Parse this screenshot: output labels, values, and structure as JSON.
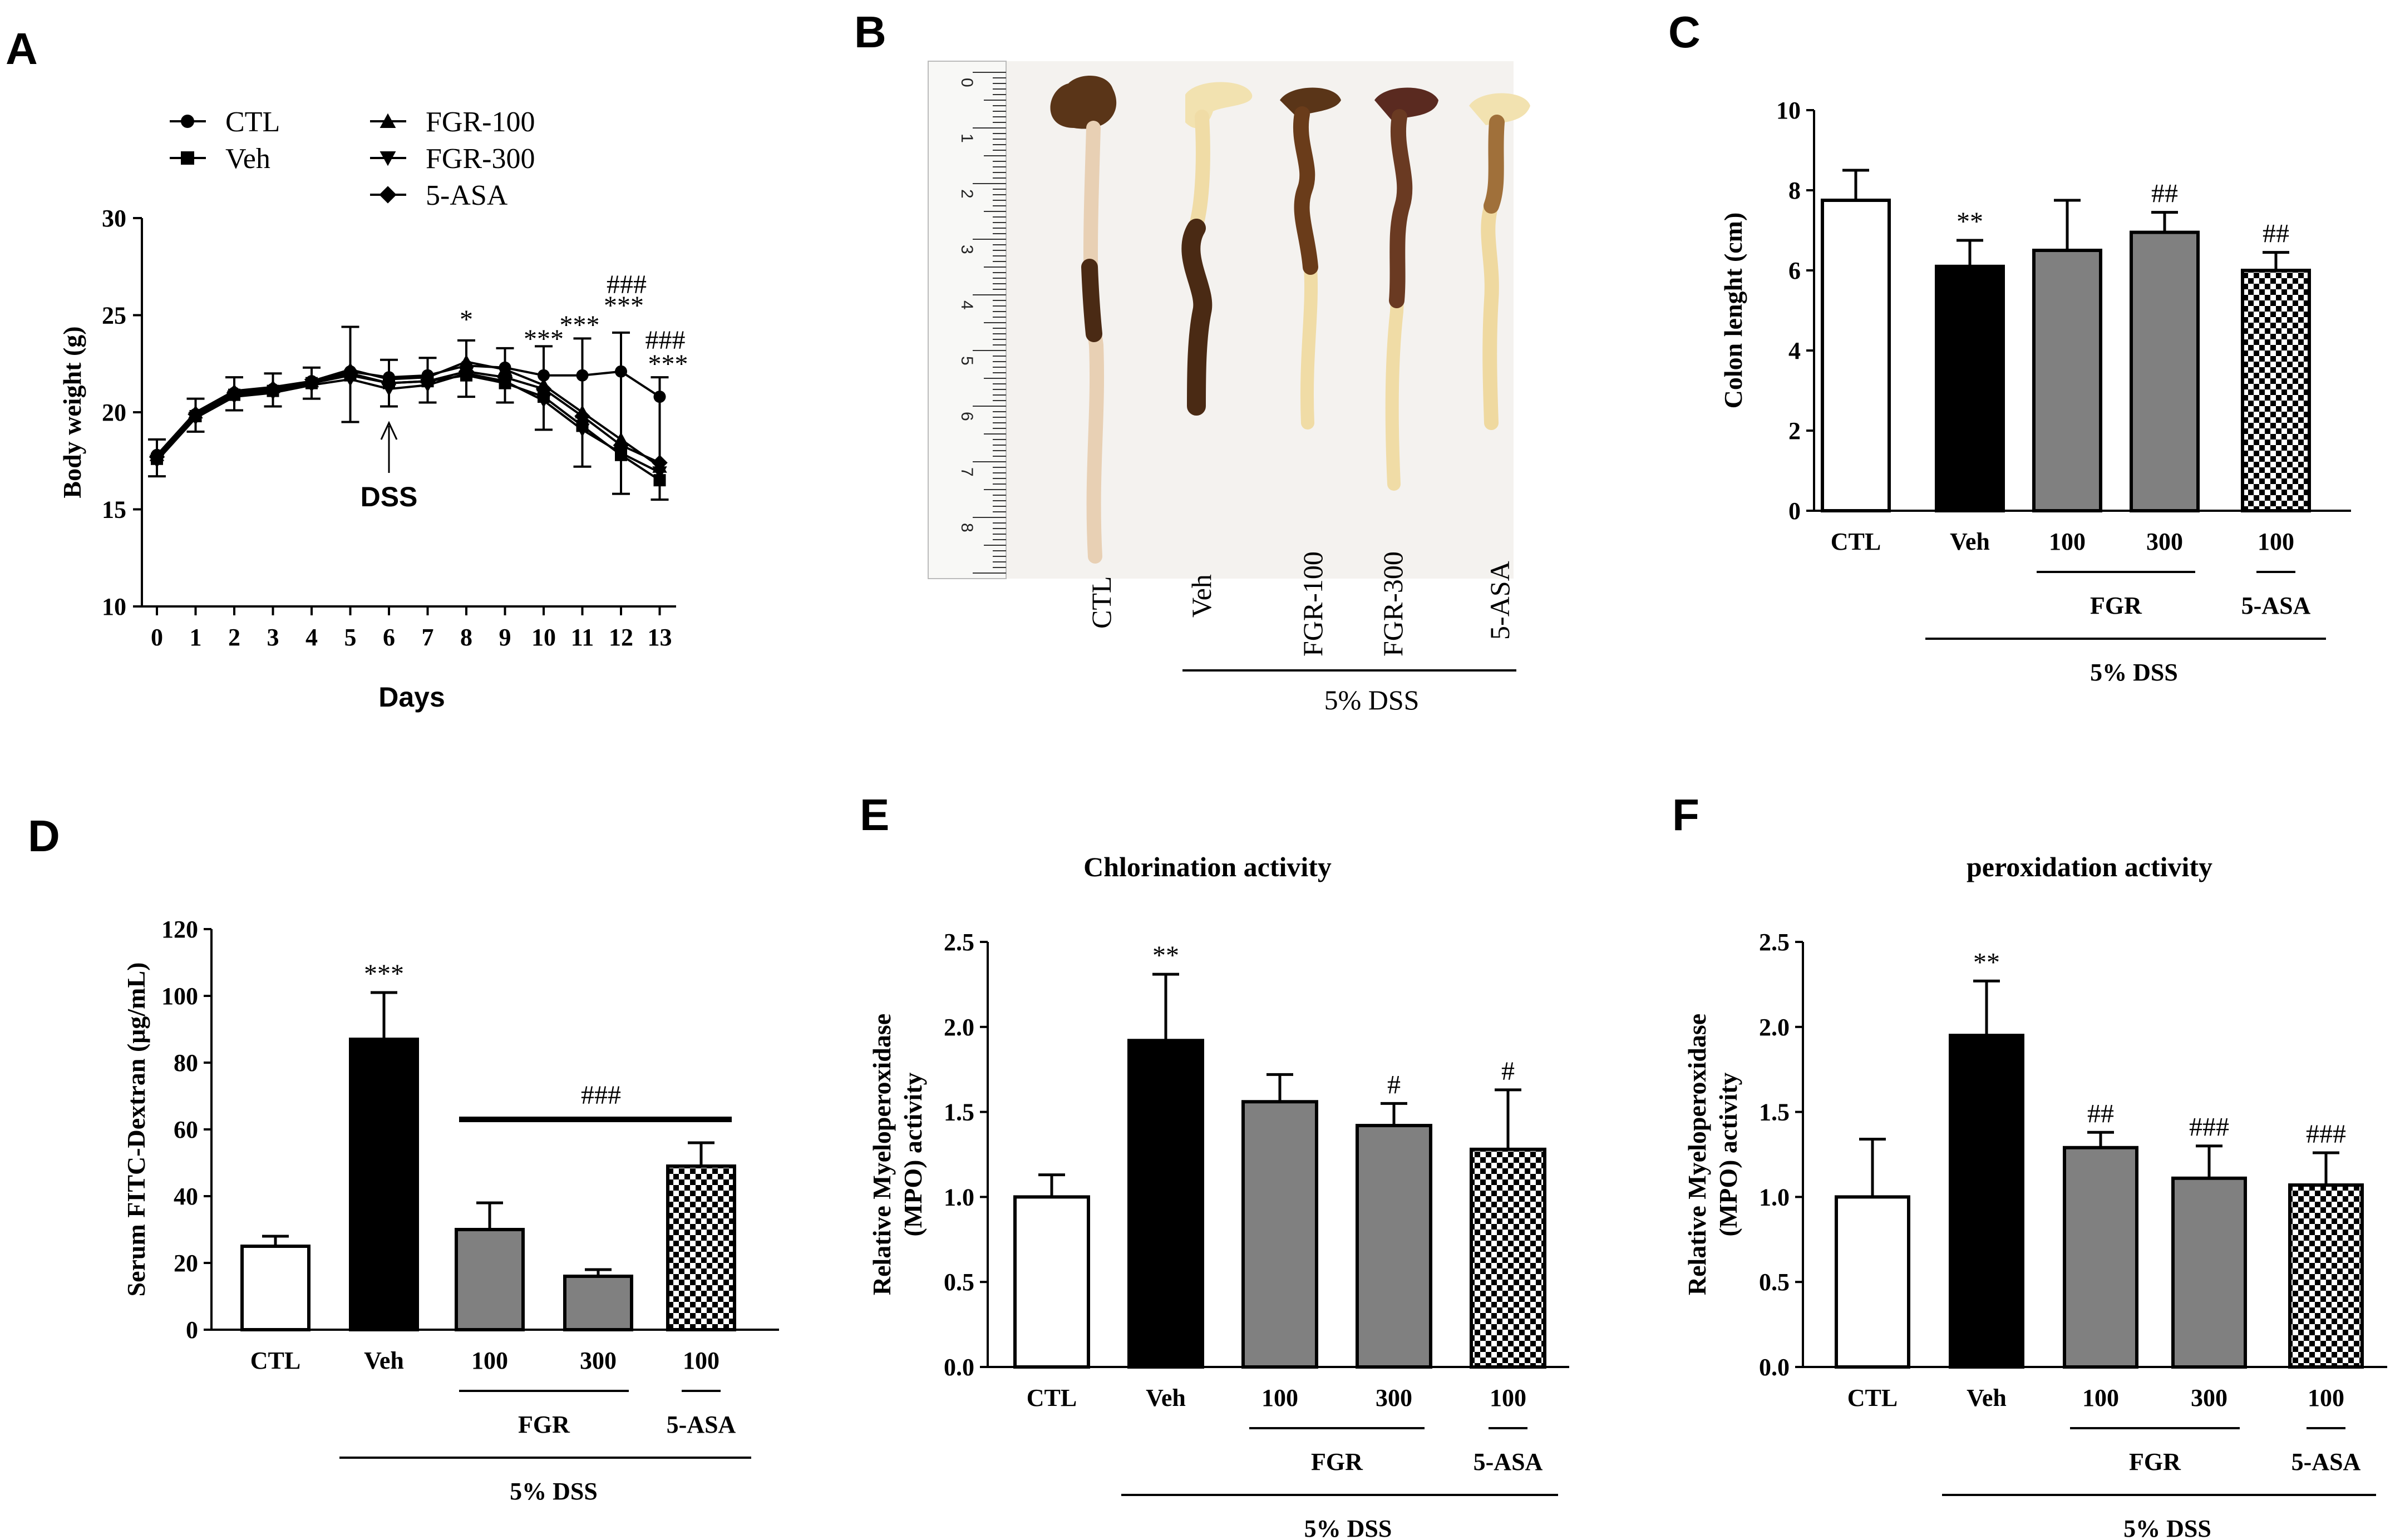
{
  "figure": {
    "panel_letters": [
      "A",
      "B",
      "C",
      "D",
      "E",
      "F"
    ]
  },
  "chart_data": [
    {
      "panel": "A",
      "type": "line",
      "xlabel": "Days",
      "ylabel": "Body weight (g)",
      "ylim": [
        10,
        30
      ],
      "yticks": [
        "10",
        "15",
        "20",
        "25",
        "30"
      ],
      "x": [
        0,
        1,
        2,
        3,
        4,
        5,
        6,
        7,
        8,
        9,
        10,
        11,
        12,
        13
      ],
      "annotation": "DSS",
      "annotation_day": 6,
      "series": [
        {
          "name": "CTL",
          "marker": "circle",
          "values": [
            17.8,
            19.9,
            21.0,
            21.2,
            21.6,
            22.1,
            21.8,
            21.9,
            22.4,
            22.3,
            21.9,
            21.9,
            22.1,
            20.8
          ]
        },
        {
          "name": "Veh",
          "marker": "square",
          "values": [
            17.6,
            19.8,
            20.9,
            21.1,
            21.5,
            21.9,
            21.5,
            21.6,
            21.9,
            21.5,
            20.8,
            19.3,
            17.8,
            16.5
          ]
        },
        {
          "name": "FGR-100",
          "marker": "triangle-up",
          "values": [
            17.8,
            20.0,
            21.1,
            21.3,
            21.6,
            22.2,
            21.7,
            21.8,
            22.6,
            22.2,
            21.4,
            20.0,
            18.6,
            17.2
          ]
        },
        {
          "name": "FGR-300",
          "marker": "triangle-down",
          "values": [
            17.5,
            19.7,
            20.8,
            21.0,
            21.4,
            21.7,
            21.2,
            21.4,
            22.0,
            21.6,
            20.6,
            19.1,
            17.9,
            16.9
          ]
        },
        {
          "name": "5-ASA",
          "marker": "diamond",
          "values": [
            17.7,
            19.9,
            21.0,
            21.2,
            21.5,
            22.0,
            21.5,
            21.6,
            22.1,
            21.8,
            21.2,
            19.8,
            18.3,
            17.4
          ]
        }
      ],
      "errors": [
        0.8,
        0.7,
        0.7,
        0.7,
        0.7,
        2.2,
        0.9,
        0.9,
        1.1,
        1.0,
        1.5,
        1.9,
        2.0,
        1.0
      ],
      "significance": [
        {
          "day": 8,
          "text": "*"
        },
        {
          "day": 10,
          "text": "***"
        },
        {
          "day": 11,
          "text": "***"
        },
        {
          "day": 12,
          "text": "***"
        },
        {
          "day": 12,
          "text": "###"
        },
        {
          "day": 13,
          "text": "###"
        },
        {
          "day": 13,
          "text": "***"
        }
      ]
    },
    {
      "panel": "C",
      "type": "bar",
      "ylabel": "Colon lenght (cm)",
      "ylim": [
        0,
        10
      ],
      "yticks": [
        "0",
        "2",
        "4",
        "6",
        "8",
        "10"
      ],
      "categories": [
        "CTL",
        "Veh",
        "100",
        "300",
        "100"
      ],
      "values": [
        7.75,
        6.1,
        6.5,
        6.95,
        6.0
      ],
      "errors": [
        0.75,
        0.65,
        1.25,
        0.5,
        0.45
      ],
      "fills": [
        "white",
        "black",
        "gray",
        "gray",
        "checker"
      ],
      "significance": [
        "",
        "**",
        "",
        "##",
        "##"
      ],
      "group_labels": {
        "fgr": "FGR",
        "asa": "5-ASA",
        "dss": "5% DSS"
      }
    },
    {
      "panel": "D",
      "type": "bar",
      "ylabel": "Serum FITC-Dextran (μg/mL)",
      "ylim": [
        0,
        120
      ],
      "yticks": [
        "0",
        "20",
        "40",
        "60",
        "80",
        "100",
        "120"
      ],
      "categories": [
        "CTL",
        "Veh",
        "100",
        "300",
        "100"
      ],
      "values": [
        25,
        87,
        30,
        16,
        49
      ],
      "errors": [
        3,
        14,
        8,
        2,
        7
      ],
      "fills": [
        "white",
        "black",
        "gray",
        "gray",
        "checker"
      ],
      "significance": [
        "",
        "***",
        "",
        "",
        ""
      ],
      "bracket_label": "###",
      "group_labels": {
        "fgr": "FGR",
        "asa": "5-ASA",
        "dss": "5% DSS"
      }
    },
    {
      "panel": "E",
      "type": "bar",
      "title": "Chlorination activity",
      "ylabel": "Relative Myeloperoxidase (MPO) activity",
      "ylabel_lines": [
        "Relative Myeloperoxidase",
        "(MPO) activity"
      ],
      "ylim": [
        0,
        2.5
      ],
      "yticks": [
        "0.0",
        "0.5",
        "1.0",
        "1.5",
        "2.0",
        "2.5"
      ],
      "categories": [
        "CTL",
        "Veh",
        "100",
        "300",
        "100"
      ],
      "values": [
        1.0,
        1.92,
        1.56,
        1.42,
        1.28
      ],
      "errors": [
        0.13,
        0.39,
        0.16,
        0.13,
        0.35
      ],
      "fills": [
        "white",
        "black",
        "gray",
        "gray",
        "checker"
      ],
      "significance": [
        "",
        "**",
        "",
        "#",
        "#"
      ],
      "group_labels": {
        "fgr": "FGR",
        "asa": "5-ASA",
        "dss": "5% DSS"
      }
    },
    {
      "panel": "F",
      "type": "bar",
      "title": "peroxidation activity",
      "ylabel": "Relative Myeloperoxidase (MPO) activity",
      "ylabel_lines": [
        "Relative Myeloperoxidase",
        "(MPO) activity"
      ],
      "ylim": [
        0,
        2.5
      ],
      "yticks": [
        "0.0",
        "0.5",
        "1.0",
        "1.5",
        "2.0",
        "2.5"
      ],
      "categories": [
        "CTL",
        "Veh",
        "100",
        "300",
        "100"
      ],
      "values": [
        1.0,
        1.95,
        1.29,
        1.11,
        1.07
      ],
      "errors": [
        0.34,
        0.32,
        0.09,
        0.19,
        0.19
      ],
      "fills": [
        "white",
        "black",
        "gray",
        "gray",
        "checker"
      ],
      "significance": [
        "",
        "**",
        "##",
        "###",
        "###"
      ],
      "group_labels": {
        "fgr": "FGR",
        "asa": "5-ASA",
        "dss": "5% DSS"
      }
    }
  ],
  "photo": {
    "panel": "B",
    "labels": [
      "CTL",
      "Veh",
      "FGR-100",
      "FGR-300",
      "5-ASA"
    ],
    "group_label": "5% DSS",
    "ruler_numbers": [
      "0",
      "1",
      "2",
      "3",
      "4",
      "5",
      "6",
      "7",
      "8"
    ]
  },
  "colors": {
    "black": "#000000",
    "gray": "#808080",
    "white": "#ffffff",
    "tissue_dark": "#4a2a14",
    "tissue_light": "#f2e2b0"
  }
}
